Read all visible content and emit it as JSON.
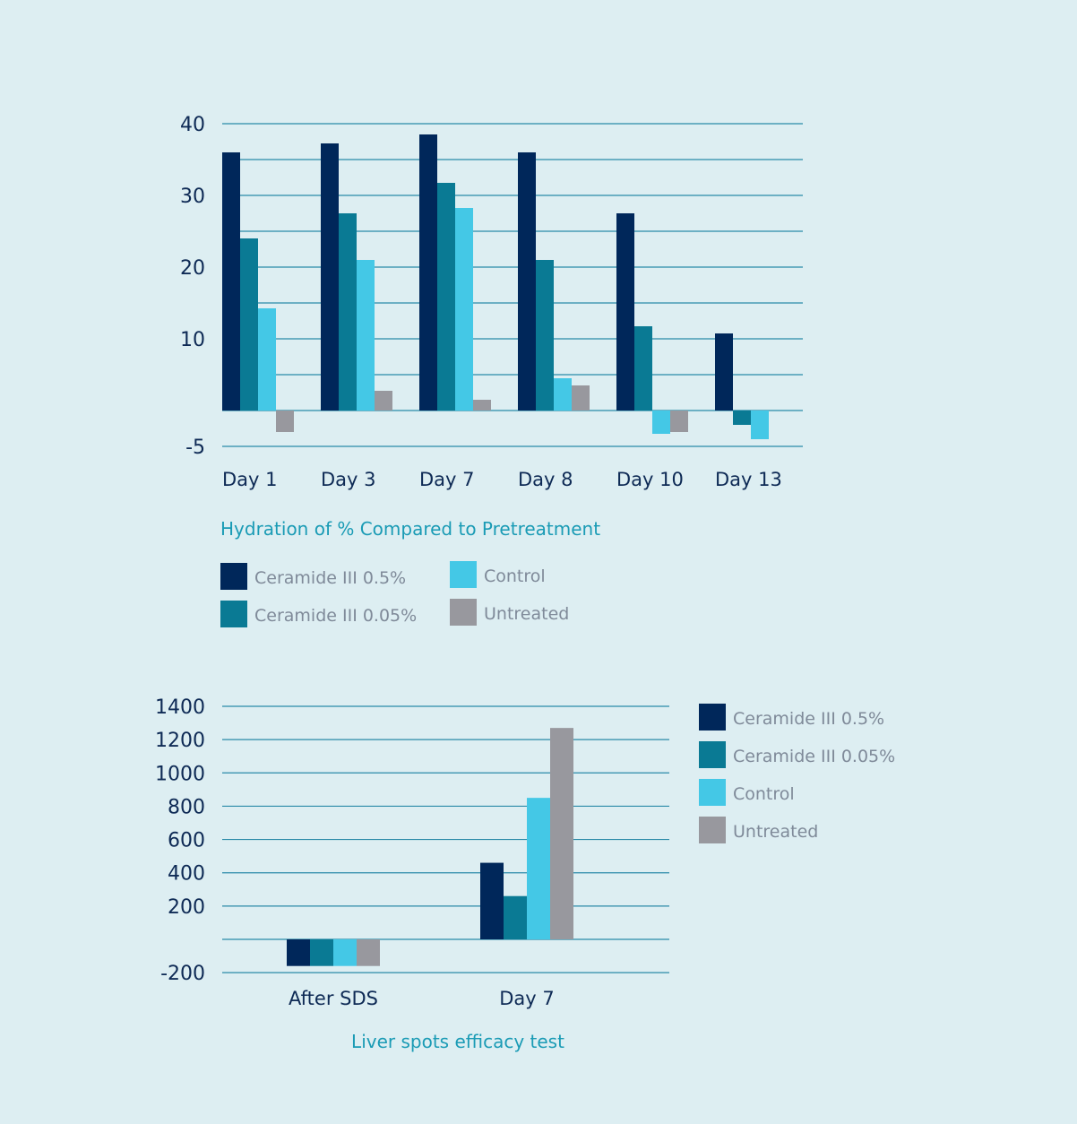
{
  "colors": {
    "background": "#ddeef2",
    "grid": "#2a8aa8",
    "series": [
      "#00275a",
      "#0a7a94",
      "#44c8e6",
      "#98989e"
    ]
  },
  "chart_data": [
    {
      "type": "bar",
      "title": "Hydration of % Compared to Pretreatment",
      "categories": [
        "Day 1",
        "Day 3",
        "Day 7",
        "Day 8",
        "Day 10",
        "Day 13"
      ],
      "series": [
        {
          "name": "Ceramide III 0.5%",
          "values": [
            36,
            37.25,
            38.5,
            36,
            27.5,
            10.75
          ]
        },
        {
          "name": "Ceramide III 0.05%",
          "values": [
            24,
            27.5,
            31.75,
            21,
            11.75,
            -2
          ]
        },
        {
          "name": "Control",
          "values": [
            14.25,
            21,
            28.25,
            4.5,
            -3.25,
            -4
          ]
        },
        {
          "name": "Untreated",
          "values": [
            -3,
            2.75,
            1.5,
            3.5,
            -3,
            0
          ]
        }
      ],
      "ylim": [
        -5,
        40
      ],
      "yticks": [
        "40",
        "30",
        "20",
        "10",
        "-5"
      ],
      "ytick_values": [
        40,
        30,
        20,
        10,
        -5
      ],
      "grid_step": 5,
      "grid": true,
      "legend_placement": "bottom"
    },
    {
      "type": "bar",
      "title": "Liver spots efficacy test",
      "categories": [
        "After SDS",
        "Day 7"
      ],
      "series": [
        {
          "name": "Ceramide III 0.5%",
          "values": [
            -160,
            460
          ]
        },
        {
          "name": "Ceramide III 0.05%",
          "values": [
            -160,
            260
          ]
        },
        {
          "name": "Control",
          "values": [
            -160,
            850
          ]
        },
        {
          "name": "Untreated",
          "values": [
            -160,
            1270
          ]
        }
      ],
      "ylim": [
        -200,
        1400
      ],
      "yticks": [
        "1400",
        "1200",
        "1000",
        "800",
        "600",
        "400",
        "200",
        "-200"
      ],
      "ytick_values": [
        1400,
        1200,
        1000,
        800,
        600,
        400,
        200,
        -200
      ],
      "grid_step": 200,
      "grid": true,
      "legend_placement": "right"
    }
  ]
}
